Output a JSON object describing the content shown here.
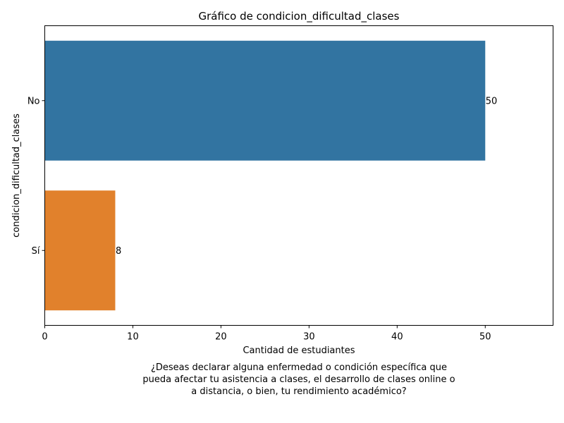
{
  "chart_data": {
    "type": "bar",
    "orientation": "horizontal",
    "title": "Gráfico de condicion_dificultad_clases",
    "xlabel": "Cantidad de estudiantes",
    "ylabel": "condicion_dificultad_clases",
    "categories": [
      "No",
      "Sí"
    ],
    "values": [
      50,
      8
    ],
    "data_labels": [
      "50",
      "8"
    ],
    "colors": [
      "#3274a1",
      "#e1812c"
    ],
    "xlim": [
      0,
      57.7
    ],
    "xticks": [
      0,
      10,
      20,
      30,
      40,
      50
    ],
    "grid": false,
    "legend": "none"
  },
  "caption": "¿Deseas declarar alguna enfermedad o condición específica que pueda afectar tu asistencia a clases, el desarrollo de clases online o a distancia, o bien, tu rendimiento académico?"
}
